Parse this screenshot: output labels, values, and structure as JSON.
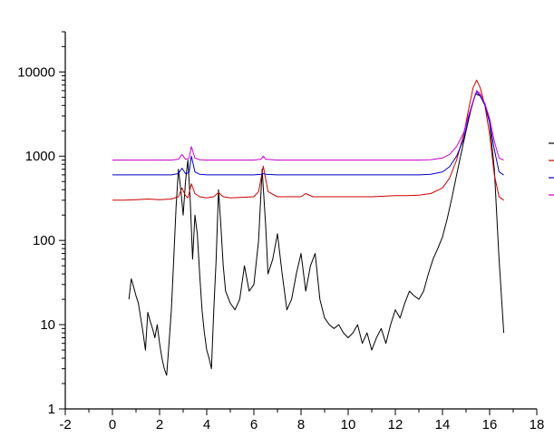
{
  "chart_data": {
    "type": "line",
    "title": "",
    "xlabel": "",
    "ylabel": "",
    "x_scale": "linear",
    "y_scale": "log",
    "xlim": [
      -2,
      18
    ],
    "ylim": [
      1,
      30000
    ],
    "x_ticks": [
      "-2",
      "0",
      "2",
      "4",
      "6",
      "8",
      "10",
      "12",
      "14",
      "16",
      "18"
    ],
    "y_ticks": [
      "1",
      "10",
      "100",
      "1000",
      "10000"
    ],
    "x_minor_step": 1,
    "grid": false,
    "legend": "right, swatches only (labels cut off)",
    "series": [
      {
        "color": "#000000",
        "x": [
          0.7,
          0.8,
          0.9,
          1.0,
          1.1,
          1.2,
          1.3,
          1.4,
          1.5,
          1.6,
          1.7,
          1.8,
          1.9,
          2.0,
          2.1,
          2.2,
          2.3,
          2.4,
          2.5,
          2.6,
          2.7,
          2.8,
          2.9,
          3.0,
          3.1,
          3.2,
          3.3,
          3.4,
          3.5,
          3.6,
          3.7,
          3.8,
          3.9,
          4.0,
          4.1,
          4.2,
          4.3,
          4.4,
          4.5,
          4.6,
          4.7,
          4.8,
          5.0,
          5.2,
          5.4,
          5.6,
          5.8,
          6.0,
          6.2,
          6.35,
          6.5,
          6.6,
          6.8,
          7.0,
          7.2,
          7.4,
          7.6,
          7.8,
          8.0,
          8.2,
          8.4,
          8.6,
          8.8,
          9.0,
          9.2,
          9.4,
          9.6,
          9.8,
          10.0,
          10.2,
          10.4,
          10.6,
          10.8,
          11.0,
          11.2,
          11.4,
          11.6,
          11.8,
          12.0,
          12.2,
          12.4,
          12.6,
          12.8,
          13.0,
          13.2,
          13.4,
          13.6,
          13.8,
          14.0,
          14.2,
          14.4,
          14.6,
          14.8,
          15.0,
          15.2,
          15.4,
          15.6,
          15.8,
          16.0,
          16.2,
          16.4,
          16.6
        ],
        "y": [
          20,
          35,
          28,
          22,
          18,
          12,
          8,
          5,
          14,
          11,
          9,
          7,
          10,
          6,
          4,
          3,
          2.5,
          6,
          15,
          60,
          250,
          700,
          400,
          200,
          500,
          900,
          300,
          60,
          200,
          120,
          40,
          15,
          8,
          5,
          4,
          3,
          15,
          60,
          400,
          150,
          50,
          25,
          18,
          15,
          20,
          50,
          25,
          30,
          100,
          700,
          150,
          40,
          60,
          120,
          40,
          15,
          20,
          40,
          70,
          25,
          50,
          70,
          20,
          12,
          10,
          9,
          10,
          8,
          7,
          8,
          10,
          6,
          8,
          5,
          7,
          9,
          6,
          10,
          15,
          12,
          18,
          25,
          22,
          20,
          25,
          40,
          60,
          80,
          110,
          180,
          320,
          600,
          1100,
          2000,
          3500,
          5500,
          5200,
          4200,
          2500,
          700,
          60,
          8
        ]
      },
      {
        "color": "#cc0000",
        "x": [
          0.0,
          0.5,
          1.0,
          1.5,
          2.0,
          2.5,
          2.8,
          2.95,
          3.1,
          3.2,
          3.35,
          3.5,
          3.7,
          4.0,
          4.3,
          4.5,
          4.7,
          5.0,
          5.5,
          6.0,
          6.2,
          6.4,
          6.6,
          7.0,
          7.5,
          8.0,
          8.2,
          8.5,
          9.0,
          10.0,
          11.0,
          11.5,
          12.0,
          12.5,
          13.0,
          13.5,
          14.0,
          14.3,
          14.6,
          14.9,
          15.1,
          15.3,
          15.45,
          15.6,
          15.8,
          16.0,
          16.2,
          16.4,
          16.6
        ],
        "y": [
          300,
          300,
          305,
          310,
          305,
          310,
          330,
          420,
          340,
          320,
          470,
          360,
          330,
          320,
          330,
          370,
          330,
          320,
          325,
          330,
          380,
          760,
          380,
          330,
          330,
          330,
          360,
          330,
          330,
          330,
          330,
          335,
          340,
          340,
          345,
          360,
          420,
          550,
          900,
          1800,
          3500,
          6500,
          8000,
          6500,
          4000,
          1800,
          600,
          330,
          300
        ]
      },
      {
        "color": "#0000cc",
        "x": [
          0.0,
          0.5,
          1.0,
          1.5,
          2.0,
          2.5,
          2.8,
          2.95,
          3.1,
          3.25,
          3.35,
          3.5,
          3.7,
          4.0,
          4.5,
          5.0,
          5.5,
          6.0,
          6.3,
          6.4,
          6.5,
          7.0,
          8.0,
          9.0,
          10.0,
          11.0,
          12.0,
          13.0,
          13.5,
          14.0,
          14.3,
          14.6,
          14.9,
          15.1,
          15.3,
          15.45,
          15.6,
          15.8,
          16.0,
          16.2,
          16.4,
          16.6
        ],
        "y": [
          600,
          600,
          600,
          600,
          600,
          600,
          620,
          720,
          620,
          640,
          1000,
          650,
          610,
          600,
          600,
          600,
          600,
          600,
          610,
          620,
          610,
          600,
          600,
          600,
          600,
          600,
          600,
          600,
          610,
          650,
          750,
          1000,
          1600,
          2800,
          4500,
          5800,
          5200,
          4000,
          2500,
          1200,
          650,
          600
        ]
      },
      {
        "color": "#cc00cc",
        "x": [
          0.0,
          0.5,
          1.0,
          1.5,
          2.0,
          2.5,
          2.8,
          2.95,
          3.1,
          3.25,
          3.35,
          3.5,
          3.7,
          4.0,
          4.5,
          5.0,
          5.5,
          6.0,
          6.3,
          6.4,
          6.5,
          7.0,
          8.0,
          9.0,
          10.0,
          11.0,
          12.0,
          13.0,
          13.5,
          14.0,
          14.3,
          14.6,
          14.9,
          15.1,
          15.3,
          15.45,
          15.6,
          15.8,
          16.0,
          16.2,
          16.4,
          16.6
        ],
        "y": [
          900,
          900,
          900,
          900,
          900,
          900,
          920,
          1050,
          920,
          940,
          1300,
          950,
          910,
          900,
          900,
          900,
          900,
          900,
          920,
          1000,
          920,
          900,
          900,
          900,
          900,
          900,
          900,
          900,
          910,
          950,
          1050,
          1300,
          1900,
          3000,
          4500,
          6000,
          5500,
          4200,
          2800,
          1500,
          950,
          900
        ]
      }
    ]
  }
}
